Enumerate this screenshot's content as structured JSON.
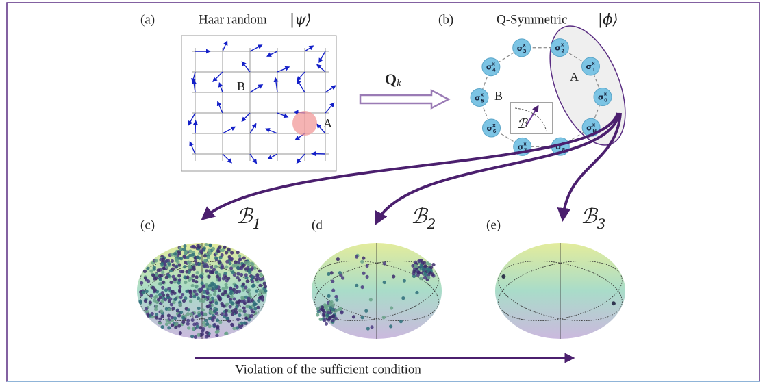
{
  "panel_a": {
    "label": "(a)",
    "title": "Haar random",
    "ket": "|ψ⟩",
    "region_b": "B",
    "region_a": "A"
  },
  "map": {
    "symbol": "Q",
    "sub": "k"
  },
  "panel_b": {
    "label": "(b)",
    "title": "Q-Symmetric",
    "ket": "|ϕ⟩",
    "region_b": "B",
    "region_a": "A",
    "inset": "ℬ",
    "nodes": [
      {
        "base": "σ",
        "sup": "x",
        "sub": "3"
      },
      {
        "base": "σ",
        "sup": "x",
        "sub": "2"
      },
      {
        "base": "σ",
        "sup": "x",
        "sub": "1"
      },
      {
        "base": "σ",
        "sup": "x",
        "sub": "0"
      },
      {
        "base": "σ",
        "sup": "x",
        "sub": "N"
      },
      {
        "base": "σ",
        "sup": "x",
        "sub": "8"
      },
      {
        "base": "σ",
        "sup": "x",
        "sub": "7"
      },
      {
        "base": "σ",
        "sup": "x",
        "sub": "6"
      },
      {
        "base": "σ",
        "sup": "x",
        "sub": "5"
      },
      {
        "base": "σ",
        "sup": "x",
        "sub": "4"
      }
    ]
  },
  "bases": [
    {
      "symbol": "ℬ",
      "sub": "1",
      "panel": "(c)"
    },
    {
      "symbol": "ℬ",
      "sub": "2",
      "panel": "(d"
    },
    {
      "symbol": "ℬ",
      "sub": "3",
      "panel": "(e)"
    }
  ],
  "footer": "Violation of the sufficient condition"
}
